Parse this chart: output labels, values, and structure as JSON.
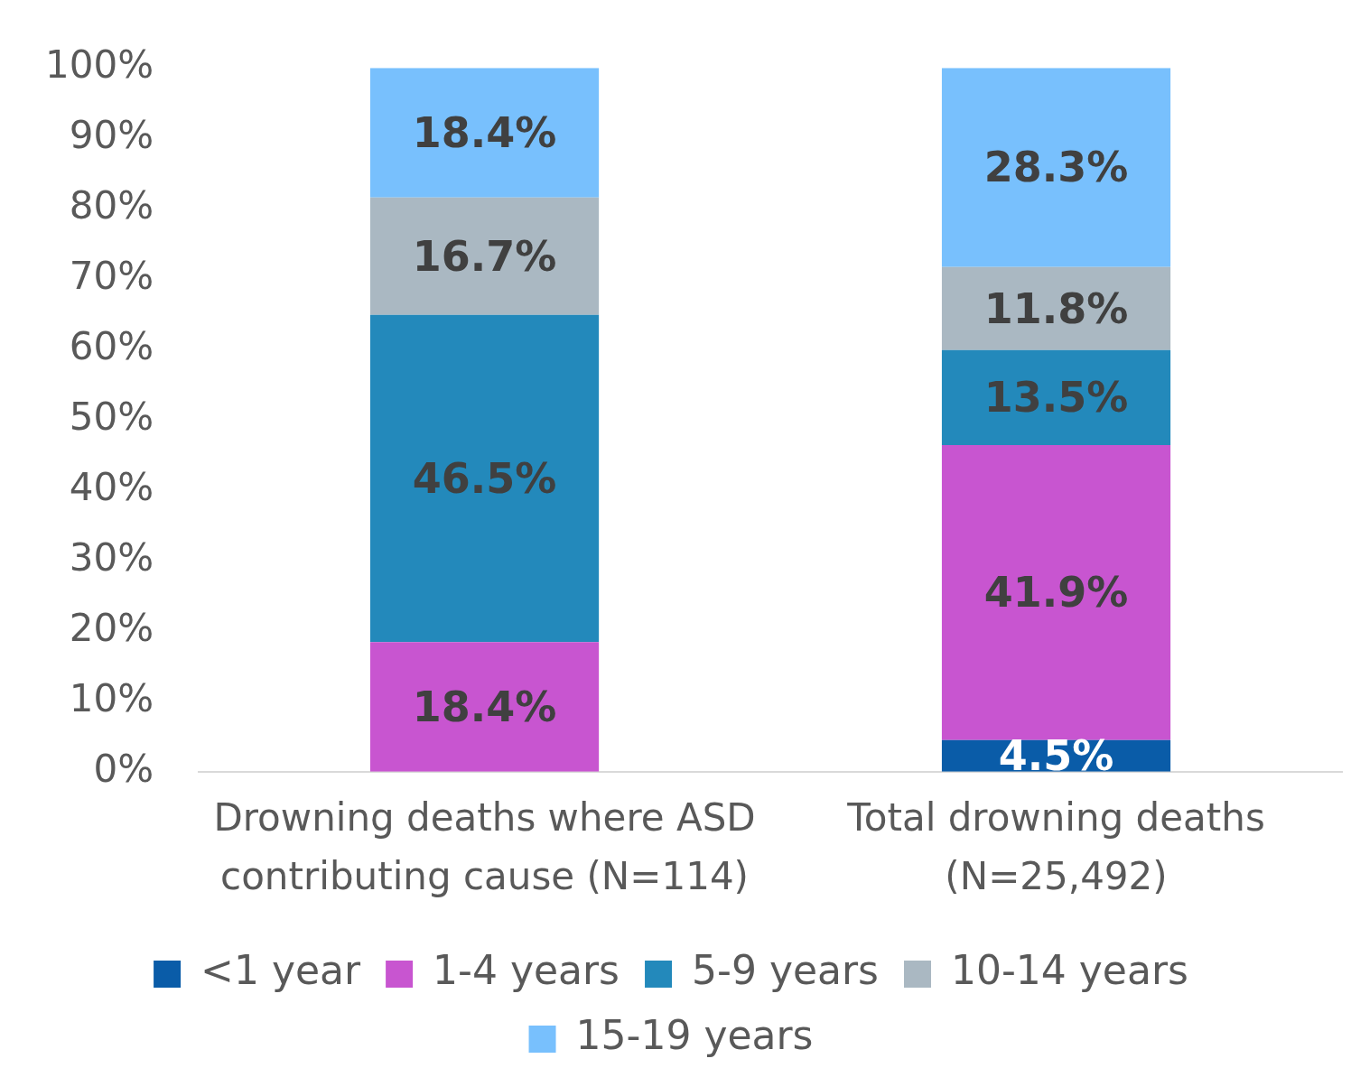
{
  "chart_data": {
    "type": "bar",
    "stacked": true,
    "categories": [
      "Drowning deaths where ASD contributing cause (N=114)",
      "Total drowning deaths (N=25,492)"
    ],
    "series": [
      {
        "name": "<1 year",
        "color": "#0a5ca8",
        "values": [
          null,
          4.5
        ],
        "value_labels": [
          null,
          "4.5%"
        ]
      },
      {
        "name": "1-4 years",
        "color": "#c855d0",
        "values": [
          18.4,
          41.9
        ],
        "value_labels": [
          "18.4%",
          "41.9%"
        ]
      },
      {
        "name": "5-9 years",
        "color": "#2389bb",
        "values": [
          46.5,
          13.5
        ],
        "value_labels": [
          "46.5%",
          "13.5%"
        ]
      },
      {
        "name": "10-14 years",
        "color": "#aab8c2",
        "values": [
          16.7,
          11.8
        ],
        "value_labels": [
          "16.7%",
          "11.8%"
        ]
      },
      {
        "name": "15-19 years",
        "color": "#78c0fd",
        "values": [
          18.4,
          28.3
        ],
        "value_labels": [
          "18.4%",
          "28.3%"
        ]
      }
    ],
    "ylim": [
      0,
      100
    ],
    "yticks": [
      {
        "value": 0,
        "label": "0%"
      },
      {
        "value": 10,
        "label": "10%"
      },
      {
        "value": 20,
        "label": "20%"
      },
      {
        "value": 30,
        "label": "30%"
      },
      {
        "value": 40,
        "label": "40%"
      },
      {
        "value": 50,
        "label": "50%"
      },
      {
        "value": 60,
        "label": "60%"
      },
      {
        "value": 70,
        "label": "70%"
      },
      {
        "value": 80,
        "label": "80%"
      },
      {
        "value": 90,
        "label": "90%"
      },
      {
        "value": 100,
        "label": "100%"
      }
    ],
    "grid": false,
    "legend": "bottom"
  }
}
